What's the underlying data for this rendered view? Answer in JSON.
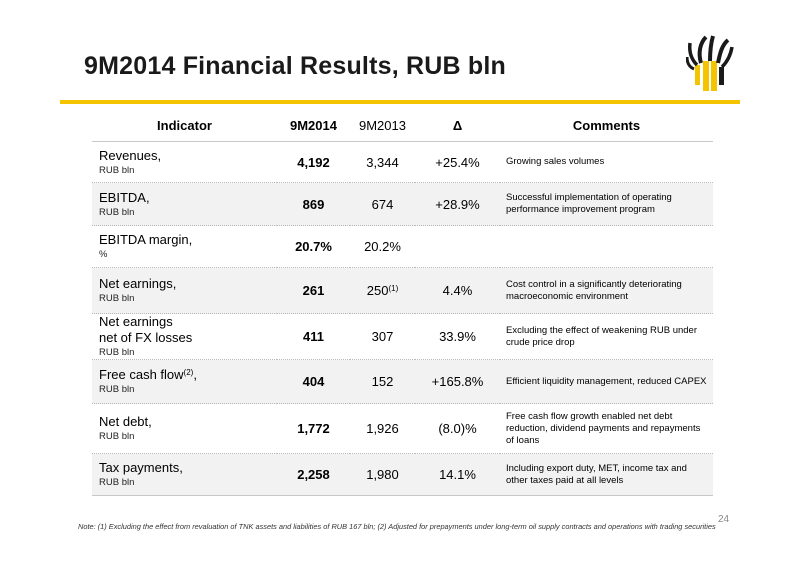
{
  "title": "9M2014 Financial Results, RUB bln",
  "table": {
    "headers": [
      "Indicator",
      "9M2014",
      "9M2013",
      "Δ",
      "Comments"
    ],
    "rows": [
      {
        "name": "Revenues,",
        "name2": "",
        "unit": "RUB bln",
        "sup": "",
        "v2014": "4,192",
        "v2013": "3,344",
        "v2013_sup": "",
        "delta": "+25.4%",
        "comment": "Growing sales volumes"
      },
      {
        "name": "EBITDA,",
        "name2": "",
        "unit": "RUB bln",
        "sup": "",
        "v2014": "869",
        "v2013": "674",
        "v2013_sup": "",
        "delta": "+28.9%",
        "comment": "Successful implementation of operating performance improvement program"
      },
      {
        "name": "EBITDA margin,",
        "name2": "",
        "unit": "%",
        "sup": "",
        "v2014": "20.7%",
        "v2013": "20.2%",
        "v2013_sup": "",
        "delta": "",
        "comment": ""
      },
      {
        "name": "Net earnings,",
        "name2": "",
        "unit": "RUB bln",
        "sup": "",
        "v2014": "261",
        "v2013": "250",
        "v2013_sup": "(1)",
        "delta": "4.4%",
        "comment": "Cost control in a significantly deteriorating macroeconomic environment"
      },
      {
        "name": "Net earnings",
        "name2": "net of FX losses",
        "unit": "RUB bln",
        "sup": "",
        "v2014": "411",
        "v2013": "307",
        "v2013_sup": "",
        "delta": "33.9%",
        "comment": "Excluding the effect of weakening RUB under crude price drop"
      },
      {
        "name": "Free cash flow",
        "name2": "",
        "unit": "RUB bln",
        "sup": "(2)",
        "suffix": ",",
        "v2014": "404",
        "v2013": "152",
        "v2013_sup": "",
        "delta": "+165.8%",
        "comment": "Efficient liquidity management, reduced CAPEX"
      },
      {
        "name": "Net debt,",
        "name2": "",
        "unit": "RUB bln",
        "sup": "",
        "v2014": "1,772",
        "v2013": "1,926",
        "v2013_sup": "",
        "delta": "(8.0)%",
        "comment": "Free cash flow growth enabled net debt reduction, dividend payments and repayments of loans"
      },
      {
        "name": "Tax payments,",
        "name2": "",
        "unit": "RUB bln",
        "sup": "",
        "v2014": "2,258",
        "v2013": "1,980",
        "v2013_sup": "",
        "delta": "14.1%",
        "comment": "Including export duty, MET, income tax and other taxes paid at all levels"
      }
    ]
  },
  "page_number": "24",
  "note": "Note: (1) Excluding the effect from revaluation of TNK assets and liabilities of RUB 167 bln; (2) Adjusted for prepayments under long-term oil supply contracts and operations with trading securities",
  "colors": {
    "accent": "#f5c400",
    "logo_dark": "#1a1a1a",
    "row_alt": "#f2f2f2"
  }
}
